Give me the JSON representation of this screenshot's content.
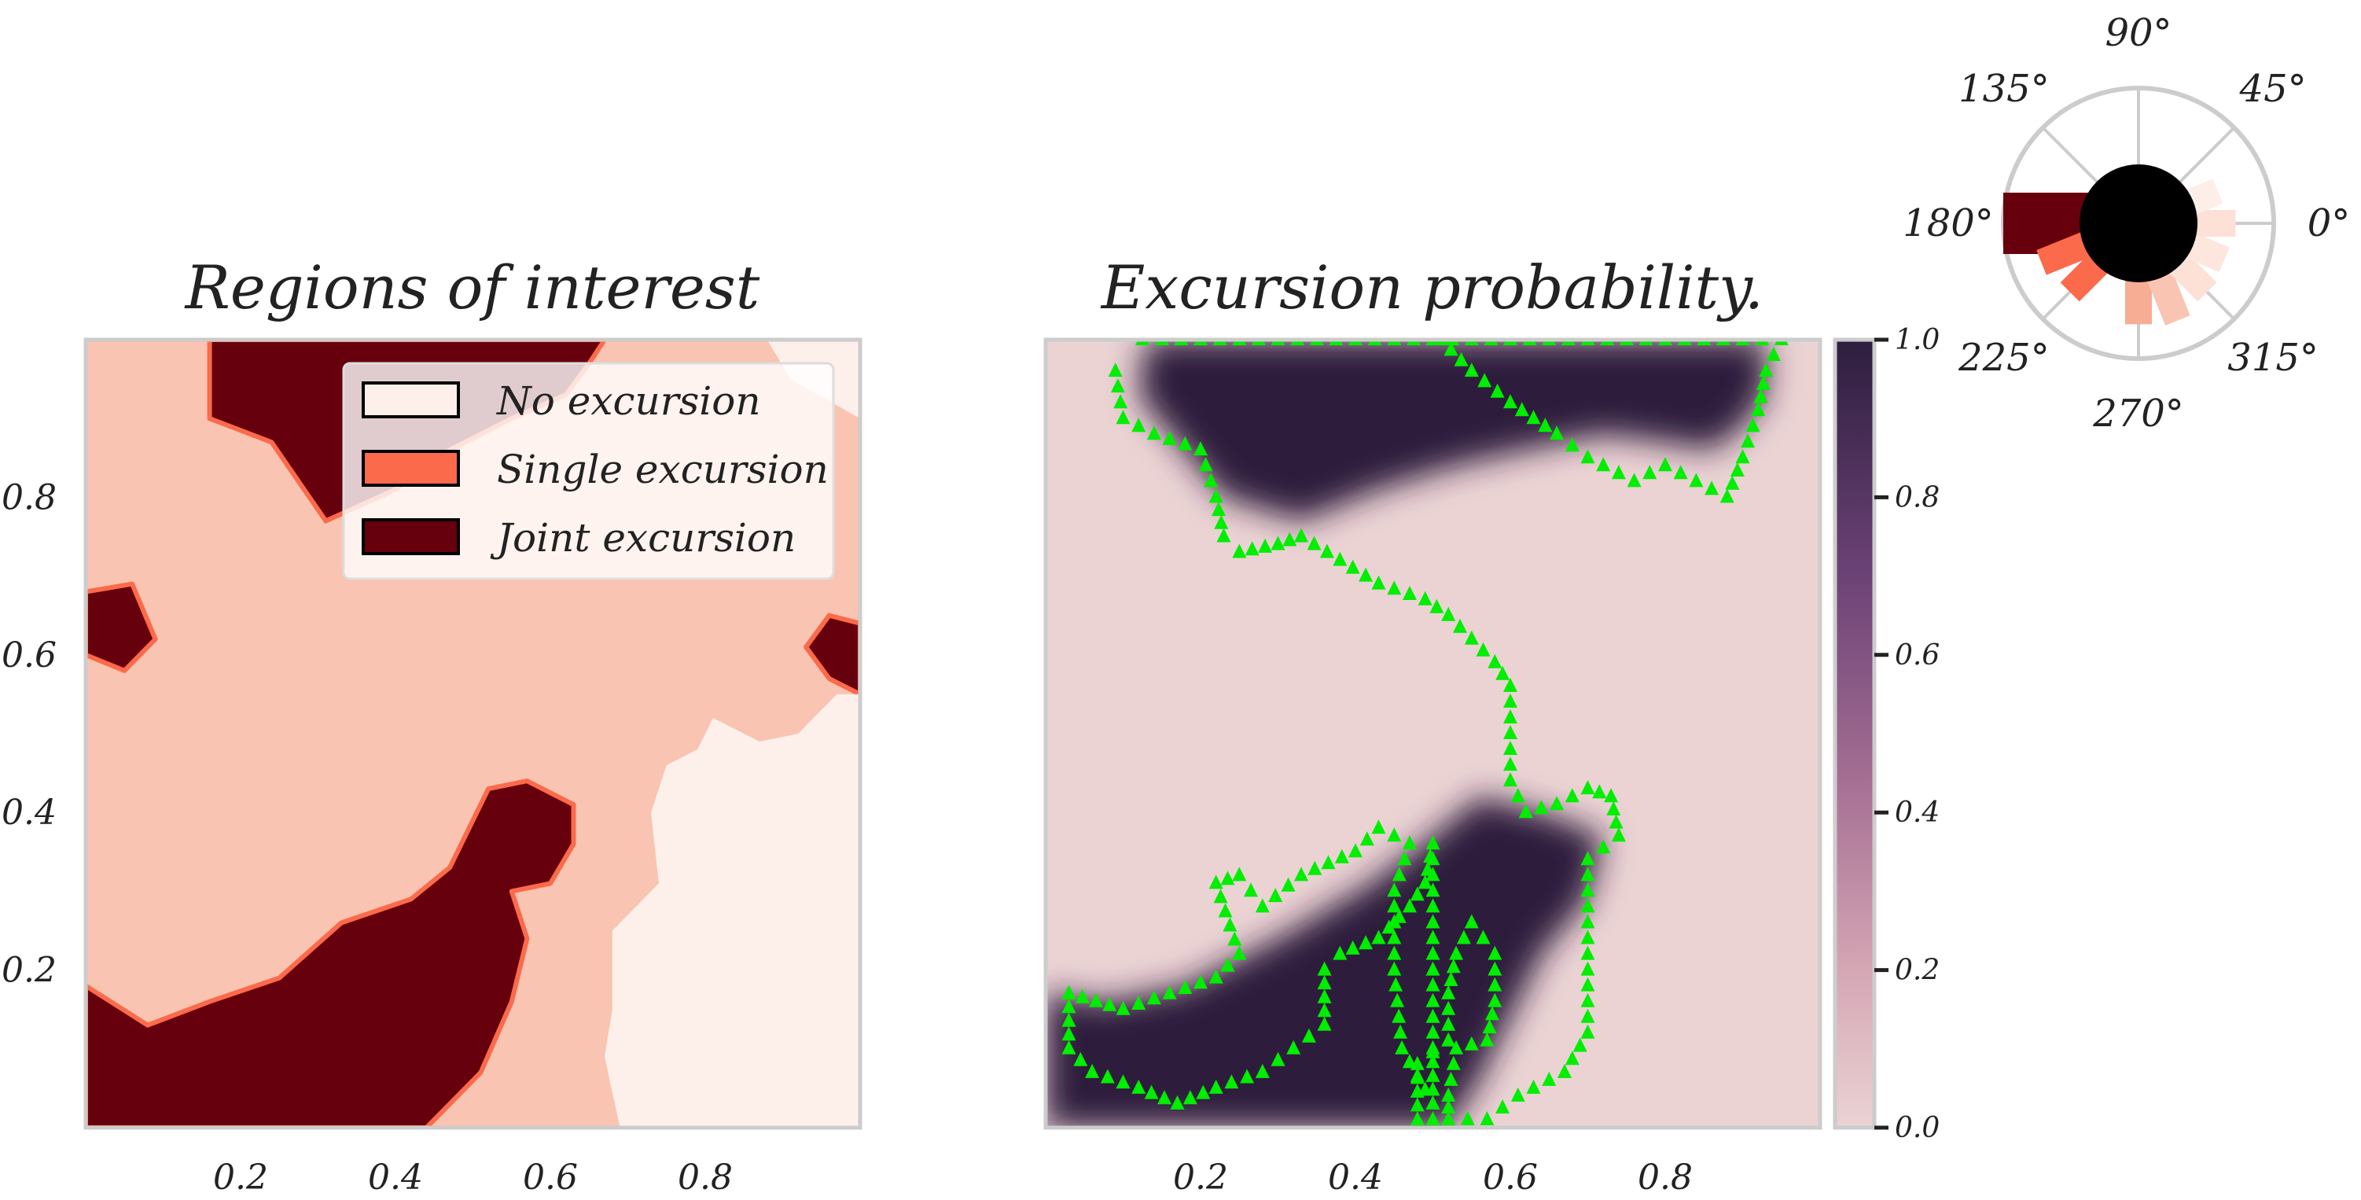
{
  "colors": {
    "no_excursion": "#fdf0eb",
    "single_excursion": "#fb6a4a",
    "joint_excursion": "#67000d",
    "single_fill_region": "#f9c4b1",
    "prob_low": "#ebd3d4",
    "prob_high": "#2d1e3e",
    "boundary_marker": "#00ee00",
    "frame": "#cccccc"
  },
  "chart_data": [
    {
      "type": "heatmap",
      "panel": "regions",
      "title": "Regions of interest",
      "xlabel": "",
      "ylabel": "",
      "xlim": [
        0,
        1
      ],
      "ylim": [
        0,
        1
      ],
      "xticks": [
        "0.2",
        "0.4",
        "0.6",
        "0.8"
      ],
      "yticks": [
        "0.2",
        "0.4",
        "0.6",
        "0.8"
      ],
      "grid": false,
      "legend": {
        "placement": "top-right",
        "entries": [
          {
            "label": "No excursion",
            "color": "#fdf0eb"
          },
          {
            "label": "Single excursion",
            "color": "#fb6a4a"
          },
          {
            "label": "Joint excursion",
            "color": "#67000d"
          }
        ]
      },
      "regions": [
        {
          "category": "Joint excursion",
          "polygon": [
            [
              0.0,
              0.18
            ],
            [
              0.08,
              0.13
            ],
            [
              0.16,
              0.16
            ],
            [
              0.25,
              0.19
            ],
            [
              0.33,
              0.26
            ],
            [
              0.42,
              0.29
            ],
            [
              0.47,
              0.33
            ],
            [
              0.52,
              0.43
            ],
            [
              0.57,
              0.44
            ],
            [
              0.63,
              0.41
            ],
            [
              0.63,
              0.36
            ],
            [
              0.6,
              0.31
            ],
            [
              0.55,
              0.3
            ],
            [
              0.57,
              0.24
            ],
            [
              0.55,
              0.16
            ],
            [
              0.51,
              0.07
            ],
            [
              0.44,
              0.0
            ],
            [
              0.0,
              0.0
            ]
          ]
        },
        {
          "category": "Joint excursion",
          "polygon": [
            [
              0.16,
              1.0
            ],
            [
              0.16,
              0.9
            ],
            [
              0.24,
              0.87
            ],
            [
              0.31,
              0.77
            ],
            [
              0.4,
              0.81
            ],
            [
              0.47,
              0.86
            ],
            [
              0.55,
              0.9
            ],
            [
              0.62,
              0.93
            ],
            [
              0.65,
              0.97
            ],
            [
              0.67,
              1.0
            ]
          ]
        },
        {
          "category": "Joint excursion",
          "polygon": [
            [
              0.0,
              0.68
            ],
            [
              0.06,
              0.69
            ],
            [
              0.09,
              0.62
            ],
            [
              0.05,
              0.58
            ],
            [
              0.0,
              0.6
            ]
          ]
        },
        {
          "category": "Joint excursion",
          "polygon": [
            [
              0.96,
              0.65
            ],
            [
              1.0,
              0.64
            ],
            [
              1.0,
              0.55
            ],
            [
              0.96,
              0.57
            ],
            [
              0.93,
              0.61
            ]
          ]
        },
        {
          "category": "No excursion",
          "polygon": [
            [
              1.0,
              0.55
            ],
            [
              0.97,
              0.55
            ],
            [
              0.92,
              0.5
            ],
            [
              0.87,
              0.49
            ],
            [
              0.81,
              0.52
            ],
            [
              0.79,
              0.48
            ],
            [
              0.75,
              0.46
            ],
            [
              0.73,
              0.4
            ],
            [
              0.74,
              0.31
            ],
            [
              0.68,
              0.25
            ],
            [
              0.68,
              0.15
            ],
            [
              0.67,
              0.09
            ],
            [
              0.69,
              0.0
            ],
            [
              1.0,
              0.0
            ]
          ]
        },
        {
          "category": "No excursion",
          "polygon": [
            [
              0.88,
              1.0
            ],
            [
              0.91,
              0.95
            ],
            [
              1.0,
              0.9
            ],
            [
              1.0,
              1.0
            ]
          ]
        }
      ]
    },
    {
      "type": "heatmap",
      "panel": "probability",
      "title": "Excursion probability.",
      "xlabel": "",
      "ylabel": "",
      "xlim": [
        0,
        1
      ],
      "ylim": [
        0,
        1
      ],
      "xticks": [
        "0.2",
        "0.4",
        "0.6",
        "0.8"
      ],
      "yticks": [],
      "grid": false,
      "colorbar": {
        "range": [
          0.0,
          1.0
        ],
        "ticks": [
          "0.0",
          "0.2",
          "0.4",
          "0.6",
          "0.8",
          "1.0"
        ]
      },
      "high_prob_regions": [
        [
          [
            0.13,
            1.0
          ],
          [
            0.12,
            0.93
          ],
          [
            0.17,
            0.87
          ],
          [
            0.23,
            0.8
          ],
          [
            0.33,
            0.77
          ],
          [
            0.43,
            0.81
          ],
          [
            0.53,
            0.84
          ],
          [
            0.62,
            0.86
          ],
          [
            0.72,
            0.88
          ],
          [
            0.8,
            0.87
          ],
          [
            0.86,
            0.86
          ],
          [
            0.9,
            0.89
          ],
          [
            0.93,
            0.93
          ],
          [
            0.93,
            1.0
          ]
        ],
        [
          [
            0.0,
            0.17
          ],
          [
            0.08,
            0.16
          ],
          [
            0.18,
            0.18
          ],
          [
            0.3,
            0.24
          ],
          [
            0.42,
            0.31
          ],
          [
            0.5,
            0.37
          ],
          [
            0.56,
            0.42
          ],
          [
            0.64,
            0.4
          ],
          [
            0.72,
            0.37
          ],
          [
            0.7,
            0.29
          ],
          [
            0.64,
            0.22
          ],
          [
            0.6,
            0.14
          ],
          [
            0.56,
            0.06
          ],
          [
            0.52,
            0.0
          ],
          [
            0.0,
            0.0
          ]
        ]
      ],
      "boundary_markers": [
        [
          [
            0.09,
            0.96
          ],
          [
            0.1,
            0.9
          ],
          [
            0.14,
            0.88
          ],
          [
            0.2,
            0.86
          ],
          [
            0.22,
            0.8
          ],
          [
            0.23,
            0.75
          ],
          [
            0.25,
            0.73
          ],
          [
            0.3,
            0.74
          ],
          [
            0.33,
            0.75
          ],
          [
            0.38,
            0.72
          ],
          [
            0.43,
            0.69
          ],
          [
            0.49,
            0.67
          ],
          [
            0.52,
            0.65
          ],
          [
            0.55,
            0.62
          ],
          [
            0.58,
            0.59
          ],
          [
            0.6,
            0.56
          ],
          [
            0.6,
            0.5
          ],
          [
            0.6,
            0.44
          ],
          [
            0.62,
            0.4
          ],
          [
            0.66,
            0.41
          ],
          [
            0.7,
            0.43
          ],
          [
            0.73,
            0.42
          ],
          [
            0.74,
            0.37
          ],
          [
            0.7,
            0.34
          ],
          [
            0.7,
            0.26
          ],
          [
            0.7,
            0.18
          ],
          [
            0.7,
            0.12
          ],
          [
            0.67,
            0.07
          ],
          [
            0.61,
            0.04
          ],
          [
            0.57,
            0.01
          ],
          [
            0.52,
            0.01
          ],
          [
            0.48,
            0.01
          ],
          [
            0.48,
            0.08
          ],
          [
            0.52,
            0.11
          ],
          [
            0.52,
            0.17
          ],
          [
            0.53,
            0.22
          ],
          [
            0.55,
            0.26
          ],
          [
            0.58,
            0.22
          ],
          [
            0.58,
            0.16
          ],
          [
            0.57,
            0.11
          ],
          [
            0.53,
            0.1
          ],
          [
            0.52,
            0.04
          ],
          [
            0.52,
            0.01
          ]
        ],
        [
          [
            0.03,
            0.17
          ],
          [
            0.03,
            0.1
          ],
          [
            0.06,
            0.07
          ],
          [
            0.12,
            0.05
          ],
          [
            0.17,
            0.03
          ],
          [
            0.22,
            0.05
          ],
          [
            0.28,
            0.07
          ],
          [
            0.32,
            0.1
          ],
          [
            0.36,
            0.13
          ],
          [
            0.36,
            0.2
          ],
          [
            0.38,
            0.22
          ],
          [
            0.43,
            0.24
          ],
          [
            0.47,
            0.28
          ],
          [
            0.49,
            0.31
          ],
          [
            0.5,
            0.36
          ],
          [
            0.5,
            0.26
          ],
          [
            0.5,
            0.18
          ],
          [
            0.5,
            0.1
          ],
          [
            0.5,
            0.03
          ],
          [
            0.46,
            0.1
          ],
          [
            0.45,
            0.2
          ],
          [
            0.45,
            0.3
          ],
          [
            0.47,
            0.36
          ],
          [
            0.43,
            0.38
          ],
          [
            0.4,
            0.35
          ],
          [
            0.33,
            0.32
          ],
          [
            0.28,
            0.28
          ],
          [
            0.25,
            0.32
          ],
          [
            0.22,
            0.31
          ],
          [
            0.25,
            0.22
          ],
          [
            0.22,
            0.19
          ],
          [
            0.16,
            0.17
          ],
          [
            0.1,
            0.15
          ],
          [
            0.03,
            0.17
          ]
        ],
        [
          [
            0.51,
            1.0
          ],
          [
            0.55,
            0.96
          ],
          [
            0.6,
            0.92
          ],
          [
            0.66,
            0.88
          ],
          [
            0.7,
            0.85
          ],
          [
            0.76,
            0.82
          ],
          [
            0.8,
            0.84
          ],
          [
            0.84,
            0.82
          ],
          [
            0.88,
            0.8
          ],
          [
            0.9,
            0.85
          ],
          [
            0.92,
            0.91
          ],
          [
            0.93,
            0.96
          ],
          [
            0.95,
            1.0
          ],
          [
            0.9,
            1.0
          ],
          [
            0.85,
            1.0
          ],
          [
            0.8,
            1.0
          ],
          [
            0.75,
            1.0
          ],
          [
            0.7,
            1.0
          ],
          [
            0.65,
            1.0
          ],
          [
            0.6,
            1.0
          ],
          [
            0.55,
            1.0
          ],
          [
            0.5,
            1.0
          ],
          [
            0.45,
            1.0
          ],
          [
            0.4,
            1.0
          ],
          [
            0.35,
            1.0
          ],
          [
            0.3,
            1.0
          ],
          [
            0.25,
            1.0
          ],
          [
            0.2,
            1.0
          ],
          [
            0.15,
            1.0
          ],
          [
            0.1,
            1.0
          ]
        ]
      ]
    },
    {
      "type": "polar_bar",
      "panel": "direction",
      "angle_labels": [
        "0°",
        "45°",
        "90°",
        "135°",
        "180°",
        "225°",
        "270°",
        "315°"
      ],
      "bars": [
        {
          "angle": 180,
          "value": 1.0,
          "color": "#67000d"
        },
        {
          "angle": 202,
          "value": 0.6,
          "color": "#fb6a4a"
        },
        {
          "angle": 225,
          "value": 0.5,
          "color": "#fb6a4a"
        },
        {
          "angle": 270,
          "value": 0.55,
          "color": "#f6ad94"
        },
        {
          "angle": 292,
          "value": 0.6,
          "color": "#f9c4b1"
        },
        {
          "angle": 315,
          "value": 0.5,
          "color": "#fde0d6"
        },
        {
          "angle": 337,
          "value": 0.45,
          "color": "#fde6de"
        },
        {
          "angle": 0,
          "value": 0.5,
          "color": "#fde0d6"
        },
        {
          "angle": 22,
          "value": 0.35,
          "color": "#fdeee8"
        }
      ]
    }
  ]
}
